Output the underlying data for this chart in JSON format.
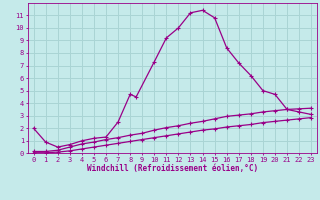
{
  "title": "",
  "xlabel": "Windchill (Refroidissement éolien,°C)",
  "xlim": [
    -0.5,
    23.5
  ],
  "ylim": [
    0,
    12
  ],
  "xticks": [
    0,
    1,
    2,
    3,
    4,
    5,
    6,
    7,
    8,
    9,
    10,
    11,
    12,
    13,
    14,
    15,
    16,
    17,
    18,
    19,
    20,
    21,
    22,
    23
  ],
  "yticks": [
    0,
    1,
    2,
    3,
    4,
    5,
    6,
    7,
    8,
    9,
    10,
    11
  ],
  "bg_color": "#c5eaea",
  "grid_color": "#aad4d4",
  "line_color": "#990088",
  "line1_x": [
    0,
    1,
    2,
    3,
    4,
    5,
    6,
    7,
    8,
    8.5,
    10,
    11,
    12,
    13,
    14,
    15,
    16,
    17,
    18,
    19,
    20,
    21,
    22,
    23
  ],
  "line1_y": [
    2.0,
    0.9,
    0.5,
    0.7,
    1.0,
    1.2,
    1.3,
    2.5,
    4.7,
    4.5,
    7.3,
    9.2,
    10.0,
    11.2,
    11.4,
    10.8,
    8.4,
    7.2,
    6.2,
    5.0,
    4.7,
    3.5,
    3.3,
    3.1
  ],
  "line2_x": [
    0,
    1,
    2,
    3,
    4,
    5,
    6,
    7,
    8,
    9,
    10,
    11,
    12,
    13,
    14,
    15,
    16,
    17,
    18,
    19,
    20,
    21,
    22,
    23
  ],
  "line2_y": [
    0.15,
    0.15,
    0.25,
    0.5,
    0.75,
    0.9,
    1.1,
    1.25,
    1.45,
    1.6,
    1.85,
    2.05,
    2.2,
    2.4,
    2.55,
    2.75,
    2.95,
    3.05,
    3.15,
    3.3,
    3.4,
    3.5,
    3.55,
    3.6
  ],
  "line3_x": [
    0,
    1,
    2,
    3,
    4,
    5,
    6,
    7,
    8,
    9,
    10,
    11,
    12,
    13,
    14,
    15,
    16,
    17,
    18,
    19,
    20,
    21,
    22,
    23
  ],
  "line3_y": [
    0.05,
    0.05,
    0.1,
    0.2,
    0.35,
    0.5,
    0.65,
    0.8,
    0.95,
    1.1,
    1.25,
    1.4,
    1.55,
    1.7,
    1.85,
    1.95,
    2.1,
    2.2,
    2.3,
    2.45,
    2.55,
    2.65,
    2.75,
    2.85
  ],
  "markersize": 3,
  "linewidth": 0.9,
  "tick_fontsize": 5,
  "xlabel_fontsize": 5.5
}
